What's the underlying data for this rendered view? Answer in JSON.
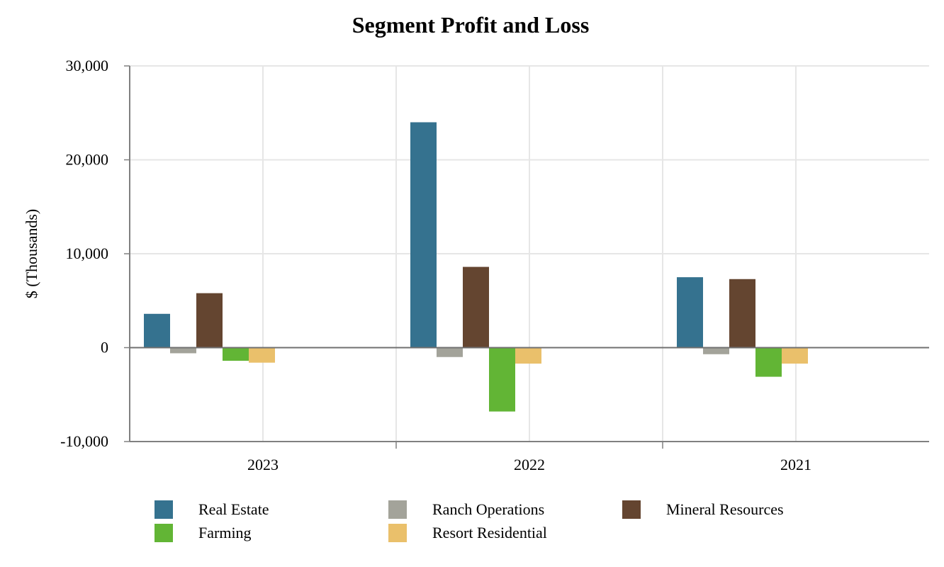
{
  "chart_data": {
    "type": "bar",
    "title": "Segment Profit and Loss",
    "xlabel": "",
    "ylabel": "$ (Thousands)",
    "ylim": [
      -10000,
      30000
    ],
    "yticks": [
      "30,000",
      "20,000",
      "10,000",
      "0",
      "-10,000"
    ],
    "ytick_values": [
      30000,
      20000,
      10000,
      0,
      -10000
    ],
    "categories": [
      "2023",
      "2022",
      "2021"
    ],
    "grid": true,
    "legend_position": "bottom",
    "series": [
      {
        "name": "Real Estate",
        "color": "#35728f",
        "values": [
          3600,
          24000,
          7500
        ]
      },
      {
        "name": "Ranch Operations",
        "color": "#a3a39a",
        "values": [
          -600,
          -1000,
          -700
        ]
      },
      {
        "name": "Mineral Resources",
        "color": "#644530",
        "values": [
          5800,
          8600,
          7300
        ]
      },
      {
        "name": "Farming",
        "color": "#62b535",
        "values": [
          -1400,
          -6800,
          -3100
        ]
      },
      {
        "name": "Resort Residential",
        "color": "#eac06b",
        "values": [
          -1600,
          -1700,
          -1700
        ]
      }
    ]
  }
}
